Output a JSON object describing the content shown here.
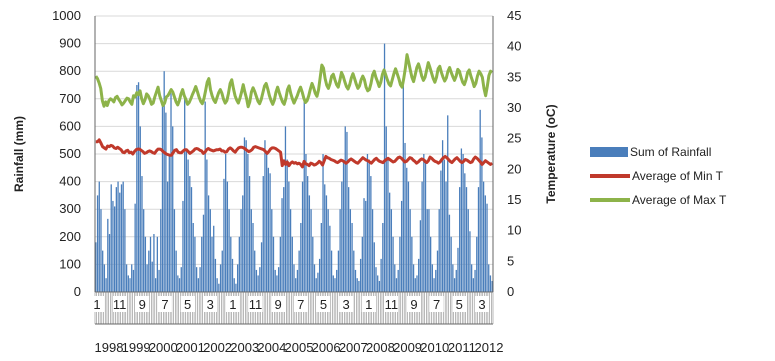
{
  "chart_data": {
    "type": "bar",
    "y_left": {
      "label": "Rainfall (mm)",
      "ylim": [
        0,
        1000
      ],
      "ticks": [
        0,
        100,
        200,
        300,
        400,
        500,
        600,
        700,
        800,
        900,
        1000
      ]
    },
    "y_right": {
      "label": "Temperature (oC)",
      "ylim": [
        0,
        45
      ],
      "ticks": [
        0,
        5,
        10,
        15,
        20,
        25,
        30,
        35,
        40,
        45
      ]
    },
    "x_month_labels": [
      "1",
      "11",
      "9",
      "7",
      "5",
      "3",
      "1",
      "11",
      "9",
      "7",
      "5",
      "3",
      "1",
      "11",
      "9",
      "7",
      "5",
      "3"
    ],
    "x_year_labels": [
      "1998",
      "1999",
      "2000",
      "2001",
      "2002",
      "2003",
      "2004",
      "2005",
      "2006",
      "2007",
      "2008",
      "2009",
      "2010",
      "2011",
      "2012"
    ],
    "x_year_labels_display": [
      "1998",
      "1999",
      "2000",
      "2001",
      "2002",
      "2003",
      "2004",
      "2005",
      "2006",
      "2007",
      "2008",
      "2009",
      "2010",
      "2011",
      "2012"
    ],
    "series": [
      {
        "name": "Sum of Rainfall",
        "type": "bar",
        "color": "#4a7ebb",
        "axis": "left",
        "values": [
          180,
          350,
          400,
          300,
          150,
          100,
          50,
          265,
          210,
          390,
          330,
          310,
          380,
          400,
          360,
          390,
          400,
          300,
          100,
          60,
          50,
          100,
          80,
          320,
          750,
          760,
          600,
          420,
          300,
          200,
          100,
          150,
          200,
          110,
          210,
          50,
          200,
          80,
          300,
          680,
          800,
          650,
          400,
          500,
          720,
          600,
          300,
          150,
          60,
          50,
          90,
          330,
          700,
          520,
          480,
          420,
          380,
          250,
          200,
          90,
          50,
          90,
          200,
          280,
          690,
          480,
          350,
          300,
          200,
          240,
          120,
          50,
          30,
          100,
          150,
          410,
          500,
          400,
          300,
          200,
          120,
          50,
          30,
          100,
          200,
          300,
          350,
          560,
          550,
          500,
          420,
          300,
          250,
          150,
          80,
          60,
          90,
          180,
          420,
          550,
          500,
          450,
          430,
          300,
          200,
          80,
          60,
          90,
          200,
          340,
          380,
          600,
          480,
          400,
          300,
          200,
          100,
          50,
          80,
          150,
          250,
          400,
          700,
          500,
          420,
          350,
          300,
          200,
          100,
          50,
          70,
          120,
          250,
          500,
          390,
          350,
          300,
          240,
          150,
          60,
          50,
          80,
          150,
          300,
          400,
          470,
          600,
          580,
          380,
          300,
          250,
          150,
          80,
          50,
          40,
          120,
          200,
          340,
          330,
          500,
          480,
          420,
          300,
          180,
          90,
          60,
          40,
          120,
          250,
          900,
          600,
          480,
          360,
          300,
          200,
          100,
          50,
          80,
          200,
          330,
          760,
          540,
          450,
          400,
          300,
          200,
          100,
          50,
          60,
          120,
          260,
          400,
          500,
          480,
          300,
          300,
          200,
          100,
          50,
          80,
          150,
          300,
          440,
          550,
          480,
          400,
          640,
          280,
          200,
          100,
          50,
          80,
          160,
          380,
          520,
          500,
          430,
          380,
          300,
          220,
          100,
          50,
          80,
          200,
          380,
          660,
          560,
          400,
          350,
          320,
          100,
          60,
          40
        ]
      },
      {
        "name": "Average of Min T",
        "type": "line",
        "color": "#c0392b",
        "axis": "right",
        "values": [
          24.5,
          24.5,
          24.8,
          24.3,
          23.7,
          23.5,
          23.3,
          23.8,
          23.7,
          23.9,
          23.8,
          23.5,
          23.4,
          23.6,
          23.4,
          23.2,
          22.8,
          22.7,
          23.0,
          23.1,
          22.7,
          22.8,
          22.5,
          22.9,
          23.2,
          23.3,
          23.3,
          23.1,
          22.9,
          22.6,
          22.7,
          22.9,
          23.0,
          22.9,
          22.7,
          22.6,
          23.0,
          23.3,
          23.3,
          23.2,
          22.9,
          22.7,
          22.5,
          22.4,
          22.3,
          22.3,
          22.7,
          23.1,
          23.2,
          22.8,
          22.7,
          22.7,
          23.0,
          23.2,
          23.2,
          22.9,
          22.6,
          22.8,
          23.0,
          23.3,
          23.4,
          23.3,
          23.1,
          23.0,
          22.6,
          22.8,
          23.2,
          23.4,
          23.2,
          23.1,
          23.0,
          23.1,
          23.2,
          23.2,
          23.3,
          23.0,
          23.0,
          22.8,
          22.9,
          23.3,
          23.5,
          23.3,
          23.0,
          22.8,
          23.2,
          23.5,
          23.6,
          23.6,
          23.5,
          23.3,
          23.1,
          22.9,
          23.0,
          23.2,
          23.6,
          23.7,
          23.6,
          23.5,
          23.4,
          23.3,
          23.2,
          22.9,
          22.6,
          22.9,
          23.3,
          23.5,
          23.5,
          23.4,
          23.2,
          23.0,
          22.8,
          20.6,
          21.4,
          20.8,
          21.2,
          20.6,
          21.0,
          21.2,
          21.0,
          21.1,
          20.9,
          21.0,
          20.8,
          20.4,
          21.3,
          20.9,
          20.8,
          20.6,
          21.0,
          20.9,
          20.7,
          20.8,
          21.0,
          21.3,
          21.1,
          20.7,
          21.4,
          22.1,
          21.9,
          21.8,
          21.6,
          21.5,
          21.4,
          21.2,
          21.1,
          21.3,
          21.5,
          21.4,
          21.2,
          21.0,
          21.2,
          21.5,
          21.7,
          21.5,
          21.3,
          21.1,
          21.0,
          21.3,
          21.6,
          21.9,
          21.7,
          21.5,
          21.4,
          21.2,
          21.0,
          21.3,
          21.6,
          21.8,
          21.5,
          21.3,
          21.2,
          21.1,
          21.4,
          21.6,
          21.8,
          21.6,
          21.4,
          21.2,
          21.3,
          21.6,
          21.9,
          22.0,
          21.8,
          21.5,
          21.2,
          21.3,
          21.6,
          21.9,
          21.8,
          21.5,
          21.3,
          21.0,
          21.2,
          21.5,
          21.7,
          21.6,
          21.3,
          21.1,
          21.4,
          22.0,
          21.8,
          21.5,
          21.3,
          21.2,
          21.0,
          21.2,
          21.6,
          21.9,
          22.1,
          21.9,
          21.6,
          21.3,
          21.1,
          21.4,
          21.7,
          21.9,
          21.6,
          21.3,
          21.1,
          21.3,
          21.6,
          21.5,
          21.3,
          21.1,
          21.2,
          21.7,
          22.0,
          21.8,
          21.5,
          21.2,
          20.8,
          21.1,
          21.4,
          21.2,
          21.0,
          20.8,
          21.0
        ]
      },
      {
        "name": "Average of Max T",
        "type": "line",
        "color": "#8db34a",
        "axis": "right",
        "values": [
          35.2,
          34.8,
          34.1,
          33.2,
          31.2,
          30.3,
          31.0,
          30.4,
          31.2,
          31.5,
          31.3,
          31.0,
          31.7,
          31.9,
          31.4,
          31.0,
          30.5,
          30.8,
          31.2,
          31.6,
          31.5,
          31.0,
          30.6,
          32.0,
          31.8,
          32.5,
          32.2,
          32.8,
          31.5,
          30.7,
          31.3,
          32.3,
          32.0,
          31.4,
          30.6,
          30.8,
          31.8,
          32.6,
          33.4,
          32.0,
          31.2,
          30.4,
          30.8,
          31.8,
          32.0,
          32.5,
          33.0,
          32.6,
          31.8,
          31.0,
          30.5,
          31.2,
          32.3,
          33.0,
          32.0,
          31.4,
          30.6,
          30.9,
          31.5,
          32.2,
          32.8,
          33.5,
          32.7,
          31.8,
          31.1,
          30.7,
          31.5,
          32.8,
          34.2,
          34.8,
          33.0,
          32.0,
          31.3,
          30.9,
          31.7,
          32.5,
          33.0,
          32.4,
          31.4,
          30.8,
          31.2,
          32.4,
          34.0,
          34.6,
          33.2,
          32.0,
          31.3,
          30.8,
          31.6,
          32.6,
          33.8,
          32.6,
          31.6,
          30.2,
          31.0,
          32.6,
          33.3,
          32.7,
          31.9,
          31.1,
          30.7,
          31.4,
          32.5,
          33.6,
          34.0,
          33.1,
          32.0,
          31.2,
          30.6,
          31.3,
          32.6,
          33.4,
          32.5,
          31.7,
          31.0,
          30.6,
          31.5,
          33.0,
          33.6,
          32.4,
          31.5,
          30.8,
          31.4,
          32.0,
          32.8,
          33.4,
          32.6,
          31.6,
          30.9,
          31.2,
          32.0,
          33.1,
          34.0,
          33.3,
          32.4,
          31.9,
          33.0,
          35.0,
          37.0,
          36.5,
          34.8,
          33.7,
          33.2,
          34.0,
          35.2,
          35.5,
          34.6,
          33.8,
          33.4,
          34.5,
          35.8,
          35.2,
          34.3,
          33.5,
          33.1,
          33.8,
          34.9,
          35.6,
          34.8,
          33.9,
          33.2,
          33.6,
          34.6,
          35.2,
          34.6,
          33.4,
          32.8,
          33.0,
          34.0,
          35.4,
          36.0,
          35.0,
          34.3,
          33.5,
          34.2,
          35.5,
          36.2,
          35.4,
          34.6,
          33.9,
          33.6,
          34.6,
          35.6,
          36.4,
          35.6,
          34.8,
          33.8,
          33.4,
          34.8,
          36.5,
          38.7,
          37.5,
          36.2,
          35.0,
          34.3,
          35.4,
          36.6,
          37.2,
          36.3,
          35.2,
          34.5,
          35.0,
          36.2,
          37.4,
          36.6,
          35.7,
          34.8,
          34.2,
          35.0,
          36.4,
          36.8,
          35.8,
          35.0,
          34.4,
          34.9,
          36.0,
          36.6,
          35.8,
          35.1,
          34.5,
          35.2,
          36.3,
          36.0,
          35.0,
          34.2,
          33.8,
          34.6,
          35.8,
          36.2,
          35.2,
          34.4,
          33.5,
          34.0,
          35.2,
          36.0,
          35.6,
          35.0,
          33.2,
          32.0,
          33.5,
          35.3,
          36.0,
          35.8
        ]
      }
    ],
    "legend_position": "right"
  }
}
